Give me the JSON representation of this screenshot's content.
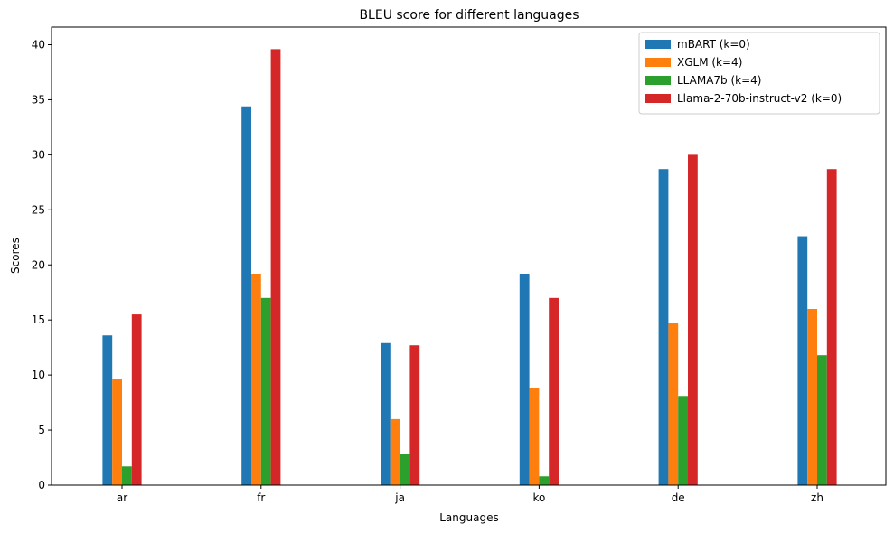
{
  "chart_data": {
    "type": "bar",
    "title": "BLEU score for different languages",
    "xlabel": "Languages",
    "ylabel": "Scores",
    "categories": [
      "ar",
      "fr",
      "ja",
      "ko",
      "de",
      "zh"
    ],
    "ylim": [
      0,
      41.6
    ],
    "yticks": [
      0,
      5,
      10,
      15,
      20,
      25,
      30,
      35,
      40
    ],
    "grid": false,
    "legend_position": "top-right",
    "series": [
      {
        "name": "mBART (k=0)",
        "color": "#1f77b4",
        "values": [
          13.6,
          34.4,
          12.9,
          19.2,
          28.7,
          22.6
        ]
      },
      {
        "name": "XGLM (k=4)",
        "color": "#ff7f0e",
        "values": [
          9.6,
          19.2,
          6.0,
          8.8,
          14.7,
          16.0
        ]
      },
      {
        "name": "LLAMA7b (k=4)",
        "color": "#2ca02c",
        "values": [
          1.7,
          17.0,
          2.8,
          0.8,
          8.1,
          11.8
        ]
      },
      {
        "name": "Llama-2-70b-instruct-v2 (k=0)",
        "color": "#d62728",
        "values": [
          15.5,
          39.6,
          12.7,
          17.0,
          30.0,
          28.7
        ]
      }
    ]
  }
}
